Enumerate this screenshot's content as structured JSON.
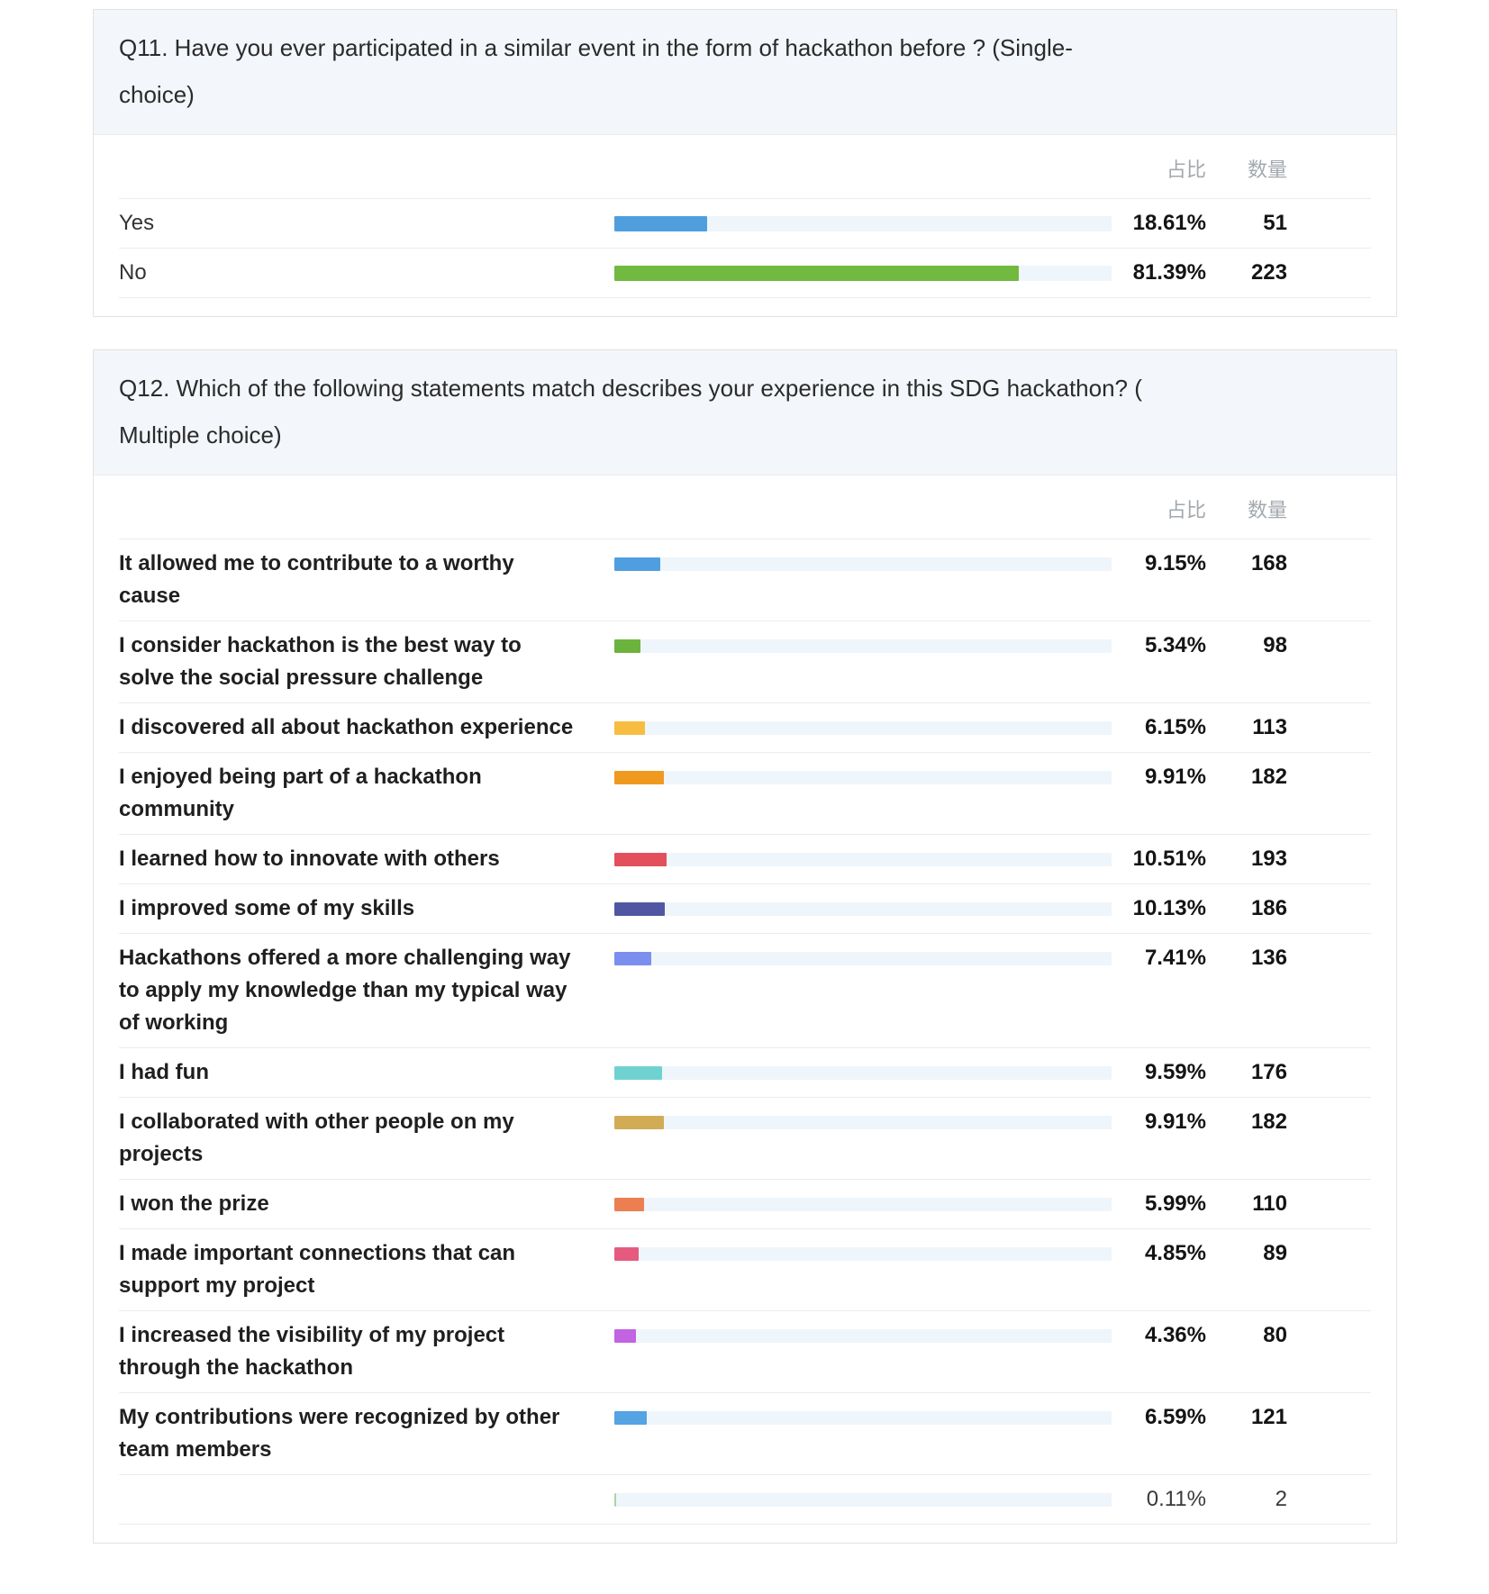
{
  "sections": [
    {
      "id": "q11",
      "title": "Q11. Have you ever participated in a similar event in the form of hackathon before ? (Single-\nchoice)",
      "percent_header": "占比",
      "count_header": "数量",
      "rows": [
        {
          "label": "Yes",
          "percent": "18.61%",
          "count": "51",
          "value": 18.61,
          "color": "#4f9ede"
        },
        {
          "label": "No",
          "percent": "81.39%",
          "count": "223",
          "value": 81.39,
          "color": "#72b93f"
        }
      ]
    },
    {
      "id": "q12",
      "title": "Q12. Which of the following statements match describes your experience in this SDG hackathon? (\nMultiple choice)",
      "percent_header": "占比",
      "count_header": "数量",
      "rows": [
        {
          "label": "It allowed me to contribute to a worthy cause",
          "percent": "9.15%",
          "count": "168",
          "value": 9.15,
          "color": "#4f9fe0"
        },
        {
          "label": "I consider hackathon is the best way to solve the social pressure challenge",
          "percent": "5.34%",
          "count": "98",
          "value": 5.34,
          "color": "#6cb33e"
        },
        {
          "label": "I discovered all about hackathon experience",
          "percent": "6.15%",
          "count": "113",
          "value": 6.15,
          "color": "#f6bd41"
        },
        {
          "label": "I enjoyed being part of a hackathon community",
          "percent": "9.91%",
          "count": "182",
          "value": 9.91,
          "color": "#f0991f"
        },
        {
          "label": "I learned how to innovate with others",
          "percent": "10.51%",
          "count": "193",
          "value": 10.51,
          "color": "#e3505c"
        },
        {
          "label": "I improved some of my skills",
          "percent": "10.13%",
          "count": "186",
          "value": 10.13,
          "color": "#5156a3"
        },
        {
          "label": "Hackathons offered a more challenging way to apply my knowledge than my typical way of working",
          "percent": "7.41%",
          "count": "136",
          "value": 7.41,
          "color": "#7b8fef"
        },
        {
          "label": "I had fun",
          "percent": "9.59%",
          "count": "176",
          "value": 9.59,
          "color": "#70d2d0"
        },
        {
          "label": "I collaborated with other people on my projects",
          "percent": "9.91%",
          "count": "182",
          "value": 9.91,
          "color": "#d2ac55"
        },
        {
          "label": "I won the prize",
          "percent": "5.99%",
          "count": "110",
          "value": 5.99,
          "color": "#ec7f52"
        },
        {
          "label": "I made important connections that can support my project",
          "percent": "4.85%",
          "count": "89",
          "value": 4.85,
          "color": "#e75a80"
        },
        {
          "label": "I increased the visibility of my project through the hackathon",
          "percent": "4.36%",
          "count": "80",
          "value": 4.36,
          "color": "#c263e2"
        },
        {
          "label": "My contributions were recognized by other team members",
          "percent": "6.59%",
          "count": "121",
          "value": 6.59,
          "color": "#54a3e3"
        },
        {
          "label": "",
          "percent": "0.11%",
          "count": "2",
          "value": 0.11,
          "color": "#a9d6a3",
          "muted": true
        }
      ]
    }
  ],
  "chart_data": [
    {
      "type": "bar",
      "orientation": "horizontal",
      "title": "Q11. Have you ever participated in a similar event in the form of hackathon before ? (Single-choice)",
      "categories": [
        "Yes",
        "No"
      ],
      "series": [
        {
          "name": "占比 (%)",
          "values": [
            18.61,
            81.39
          ]
        },
        {
          "name": "数量",
          "values": [
            51,
            223
          ]
        }
      ],
      "xlim": [
        0,
        100
      ],
      "bar_colors": [
        "#4f9ede",
        "#72b93f"
      ],
      "grid": false,
      "legend_position": "none"
    },
    {
      "type": "bar",
      "orientation": "horizontal",
      "title": "Q12. Which of the following statements match describes your experience in this SDG hackathon? ( Multiple choice)",
      "categories": [
        "It allowed me to contribute to a worthy cause",
        "I consider hackathon is the best way to solve the social pressure challenge",
        "I discovered all about hackathon experience",
        "I enjoyed being part of a hackathon community",
        "I learned how to innovate with others",
        "I improved some of my skills",
        "Hackathons offered a more challenging way to apply my knowledge than my typical way of working",
        "I had fun",
        "I collaborated with other people on my projects",
        "I won the prize",
        "I made important connections that can support my project",
        "I increased the visibility of my project through the hackathon",
        "My contributions were recognized by other team members",
        ""
      ],
      "series": [
        {
          "name": "占比 (%)",
          "values": [
            9.15,
            5.34,
            6.15,
            9.91,
            10.51,
            10.13,
            7.41,
            9.59,
            9.91,
            5.99,
            4.85,
            4.36,
            6.59,
            0.11
          ]
        },
        {
          "name": "数量",
          "values": [
            168,
            98,
            113,
            182,
            193,
            186,
            136,
            176,
            182,
            110,
            89,
            80,
            121,
            2
          ]
        }
      ],
      "xlim": [
        0,
        100
      ],
      "bar_colors": [
        "#4f9fe0",
        "#6cb33e",
        "#f6bd41",
        "#f0991f",
        "#e3505c",
        "#5156a3",
        "#7b8fef",
        "#70d2d0",
        "#d2ac55",
        "#ec7f52",
        "#e75a80",
        "#c263e2",
        "#54a3e3",
        "#a9d6a3"
      ],
      "grid": false,
      "legend_position": "none"
    }
  ]
}
